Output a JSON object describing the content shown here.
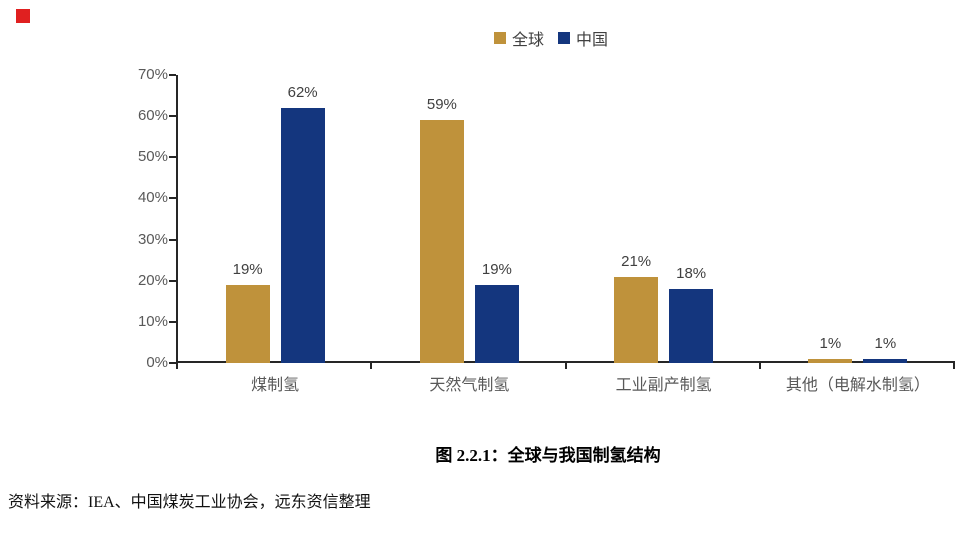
{
  "marker": {
    "color": "#e02020"
  },
  "legend": {
    "items": [
      {
        "label": "全球",
        "color": "#bf923b"
      },
      {
        "label": "中国",
        "color": "#14367e"
      }
    ]
  },
  "caption": "图 2.2.1：全球与我国制氢结构",
  "source": "资料来源：IEA、中国煤炭工业协会，远东资信整理",
  "chart_data": {
    "type": "bar",
    "categories": [
      "煤制氢",
      "天然气制氢",
      "工业副产制氢",
      "其他（电解水制氢）"
    ],
    "series": [
      {
        "name": "全球",
        "color": "#bf923b",
        "values": [
          19,
          59,
          21,
          1
        ]
      },
      {
        "name": "中国",
        "color": "#14367e",
        "values": [
          62,
          19,
          18,
          1
        ]
      }
    ],
    "data_label_suffix": "%",
    "y_tick_labels": [
      "0%",
      "10%",
      "20%",
      "30%",
      "40%",
      "50%",
      "60%",
      "70%"
    ],
    "ylim": [
      0,
      70
    ],
    "y_tick_step": 10,
    "grid": false,
    "legend_position": "top-center",
    "data_labels": true,
    "axis_color": "#262626",
    "tick_label_color": "#595959",
    "data_label_color": "#404040"
  }
}
